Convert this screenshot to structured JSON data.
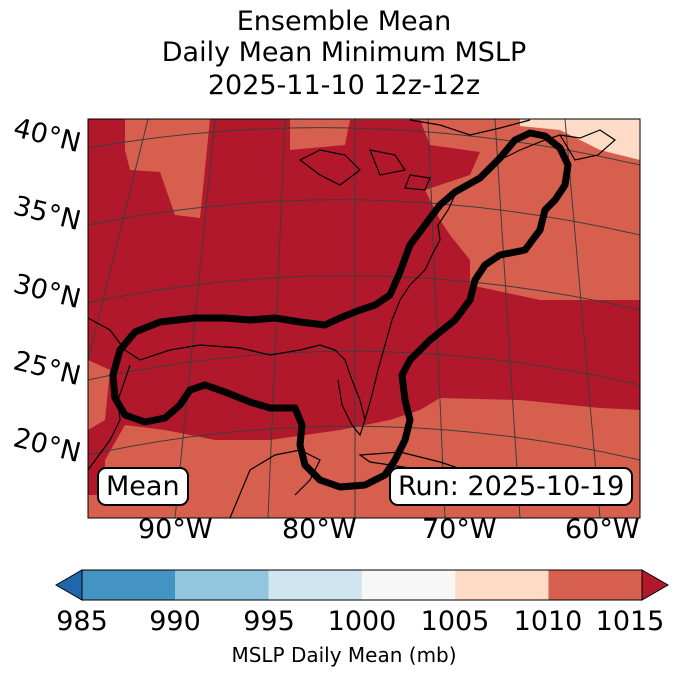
{
  "title": {
    "line1": "Ensemble Mean",
    "line2": "Daily Mean Minimum MSLP",
    "line3": "2025-11-10 12z-12z"
  },
  "map": {
    "lat_labels": [
      "40°N",
      "35°N",
      "30°N",
      "25°N",
      "20°N"
    ],
    "lon_labels": [
      "90°W",
      "80°W",
      "70°W",
      "60°W"
    ],
    "mean_label": "Mean",
    "run_label": "Run: 2025-10-19",
    "field_colors": {
      "lt_1010": "#b2182b",
      "1010_1015": "#d6604d",
      "gt_1015": "#fddbc7"
    },
    "contour_color": "#000000"
  },
  "colorbar": {
    "ticks": [
      "985",
      "990",
      "995",
      "1000",
      "1005",
      "1010",
      "1015"
    ],
    "label": "MSLP Daily Mean (mb)",
    "colors": [
      "#2166ac",
      "#4393c3",
      "#92c5de",
      "#d1e5f0",
      "#f7f7f7",
      "#fddbc7",
      "#d6604d",
      "#b2182b"
    ],
    "extend": "both"
  }
}
